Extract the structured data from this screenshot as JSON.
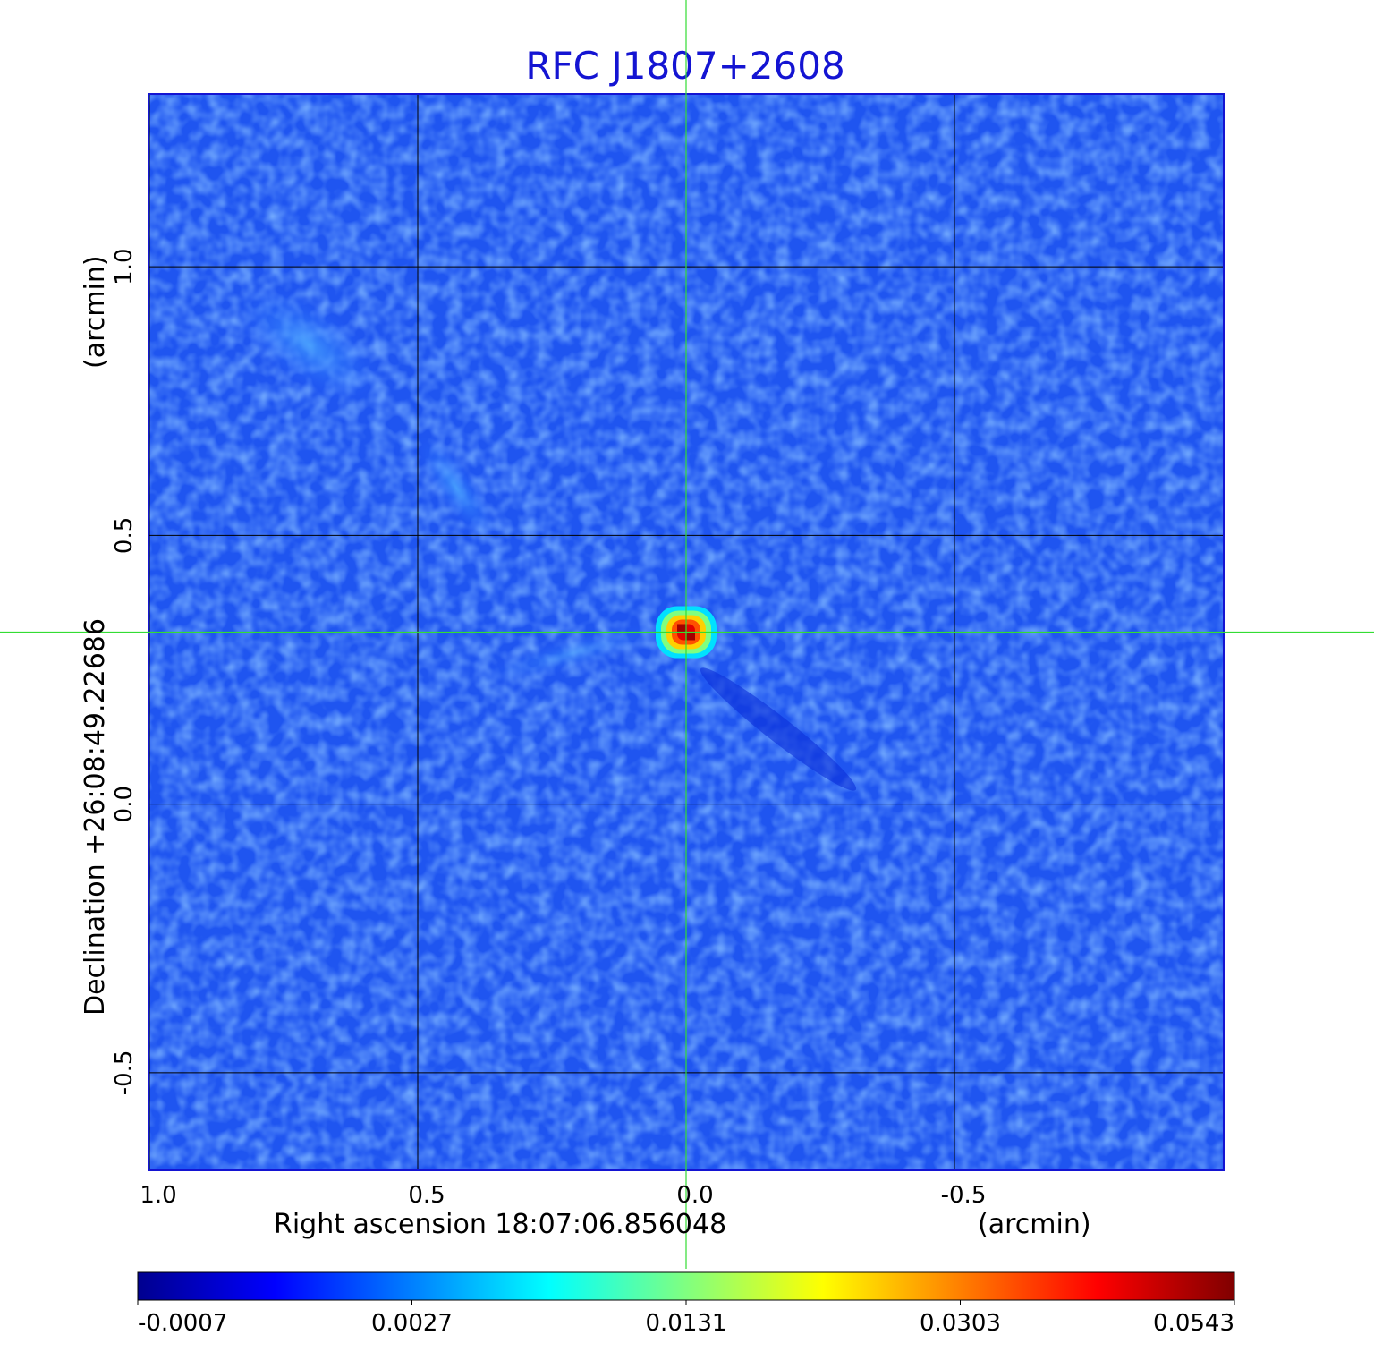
{
  "chart_data": {
    "type": "heatmap",
    "title": "RFC J1807+2608",
    "colors": {
      "title": "#1414d2",
      "crosshair": "#33dd33",
      "frame": "#1414d2",
      "grid": "#000000"
    },
    "xlabel": "Right ascension  18:07:06.856048",
    "xunit": "(arcmin)",
    "ylabel": "Declination  +26:08:49.22686",
    "yunit": "(arcmin)",
    "x_ticks": [
      {
        "value": 1.0,
        "label": "1.0"
      },
      {
        "value": 0.5,
        "label": "0.5"
      },
      {
        "value": 0.0,
        "label": "0.0"
      },
      {
        "value": -0.5,
        "label": "-0.5"
      }
    ],
    "y_ticks": [
      {
        "value": 1.0,
        "label": "1.0"
      },
      {
        "value": 0.5,
        "label": "0.5"
      },
      {
        "value": 0.0,
        "label": "0.0"
      },
      {
        "value": -0.5,
        "label": "-0.5"
      }
    ],
    "xlim": [
      1.0,
      -1.0
    ],
    "ylim": [
      -0.68,
      1.32
    ],
    "grid": true,
    "crosshair": {
      "x": 0.0,
      "y": 0.32
    },
    "source_peak": {
      "x": 0.0,
      "y": 0.32,
      "value": 0.0543
    },
    "colorbar": {
      "ticks": [
        "-0.0007",
        "0.0027",
        "0.0131",
        "0.0303",
        "0.0543"
      ],
      "colormap": "jet"
    }
  }
}
